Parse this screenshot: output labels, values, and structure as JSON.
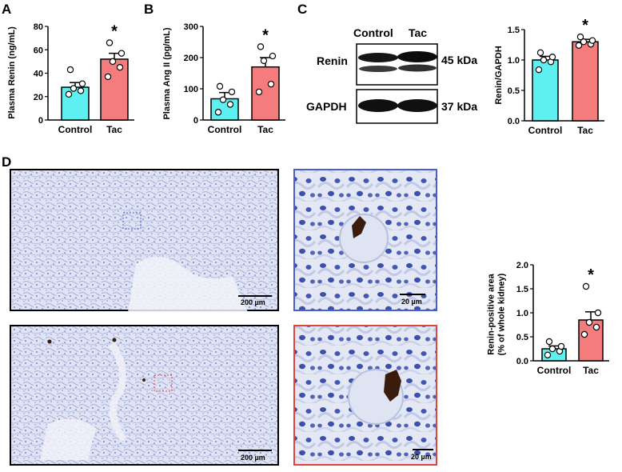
{
  "panel_letters": {
    "a": "A",
    "b": "B",
    "c": "C",
    "d": "D"
  },
  "western_blot": {
    "lane_labels": [
      "Control",
      "Tac"
    ],
    "bands": [
      {
        "name": "Renin",
        "size": "45 kDa"
      },
      {
        "name": "GAPDH",
        "size": "37 kDa"
      }
    ]
  },
  "micrographs": {
    "scale_low": "200 µm",
    "scale_high": "20 µm",
    "frame_control": "#4a5fcc",
    "frame_tac": "#e0453d"
  },
  "colors": {
    "control": "#5ef0f0",
    "tac": "#f47c7c"
  },
  "chart_data": [
    {
      "id": "A",
      "type": "bar",
      "categories": [
        "Control",
        "Tac"
      ],
      "values": [
        28,
        52
      ],
      "errors": [
        4,
        5
      ],
      "points": [
        [
          22,
          25,
          27,
          31,
          43
        ],
        [
          37,
          45,
          50,
          57,
          66
        ]
      ],
      "ylabel": "Plasma Renin (ng/mL)",
      "ylim": [
        0,
        80
      ],
      "yticks": [
        "0",
        "20",
        "40",
        "60",
        "80"
      ],
      "tick_values": [
        0,
        20,
        40,
        60,
        80
      ],
      "significance": "*"
    },
    {
      "id": "B",
      "type": "bar",
      "categories": [
        "Control",
        "Tac"
      ],
      "values": [
        68,
        170
      ],
      "errors": [
        20,
        30
      ],
      "points": [
        [
          25,
          50,
          65,
          90,
          108
        ],
        [
          90,
          115,
          190,
          205,
          235
        ]
      ],
      "ylabel": "Plasma Ang II (pg/mL)",
      "ylim": [
        0,
        300
      ],
      "yticks": [
        "0",
        "100",
        "200",
        "300"
      ],
      "tick_values": [
        0,
        100,
        200,
        300
      ],
      "significance": "*"
    },
    {
      "id": "C",
      "type": "bar",
      "categories": [
        "Control",
        "Tac"
      ],
      "values": [
        1.0,
        1.3
      ],
      "errors": [
        0.06,
        0.04
      ],
      "points": [
        [
          0.84,
          0.97,
          1.0,
          1.05,
          1.12
        ],
        [
          1.24,
          1.26,
          1.3,
          1.32,
          1.38
        ]
      ],
      "ylabel": "Renin/GAPDH",
      "ylim": [
        0,
        1.5
      ],
      "yticks": [
        "0.0",
        "0.5",
        "1.0",
        "1.5"
      ],
      "tick_values": [
        0,
        0.5,
        1.0,
        1.5
      ],
      "significance": "*"
    },
    {
      "id": "D",
      "type": "bar",
      "categories": [
        "Control",
        "Tac"
      ],
      "values": [
        0.25,
        0.85
      ],
      "errors": [
        0.06,
        0.17
      ],
      "points": [
        [
          0.12,
          0.2,
          0.25,
          0.3,
          0.4
        ],
        [
          0.55,
          0.7,
          0.8,
          1.0,
          1.55
        ]
      ],
      "ylabel": [
        "Renin-positive area",
        "(% of whole kidney)"
      ],
      "ylim": [
        0,
        2.0
      ],
      "yticks": [
        "0.0",
        "0.5",
        "1.0",
        "1.5",
        "2.0"
      ],
      "tick_values": [
        0,
        0.5,
        1.0,
        1.5,
        2.0
      ],
      "significance": "*"
    }
  ]
}
